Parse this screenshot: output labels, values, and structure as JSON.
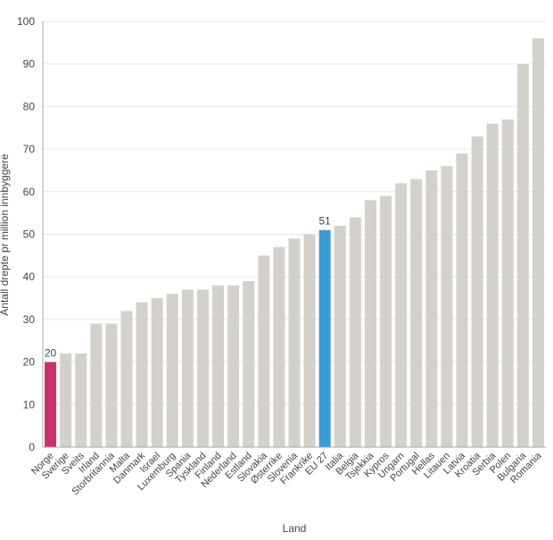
{
  "chart_data": {
    "type": "bar",
    "xlabel": "Land",
    "ylabel": "Antall drepte pr million innbyggere",
    "ylim": [
      0,
      100
    ],
    "yticks": [
      0,
      10,
      20,
      30,
      40,
      50,
      60,
      70,
      80,
      90,
      100
    ],
    "grid": true,
    "categories": [
      "Norge",
      "Sverige",
      "Sveits",
      "Irland",
      "Storbritannia",
      "Malta",
      "Danmark",
      "Israel",
      "Luxemburg",
      "Spania",
      "Tyskland",
      "Finland",
      "Nederland",
      "Estland",
      "Slovakia",
      "Østerrike",
      "Slovenia",
      "Frankrike",
      "EU 27",
      "Italia",
      "Belgia",
      "Tsjekkia",
      "Kypros",
      "Ungarn",
      "Portugal",
      "Hellas",
      "Litauen",
      "Latvia",
      "Kroatia",
      "Serbia",
      "Polen",
      "Bulgaria",
      "Romania"
    ],
    "values": [
      20,
      22,
      22,
      29,
      29,
      32,
      34,
      35,
      36,
      37,
      37,
      38,
      38,
      39,
      45,
      47,
      49,
      50,
      51,
      52,
      54,
      58,
      59,
      62,
      63,
      65,
      66,
      69,
      73,
      76,
      77,
      90,
      96
    ],
    "highlights": [
      {
        "category": "Norge",
        "color": "#c8306e",
        "label": "20"
      },
      {
        "category": "EU 27",
        "color": "#3b9dd6",
        "label": "51"
      }
    ],
    "default_color": "#d3d1ca"
  }
}
